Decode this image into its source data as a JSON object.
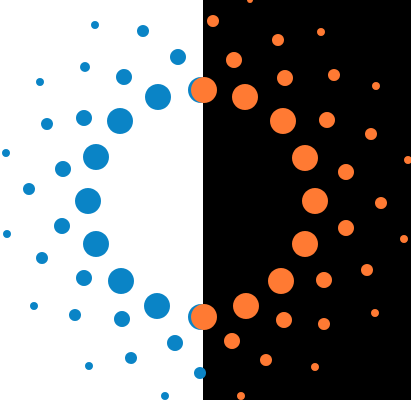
{
  "graphic": {
    "name": "split-dot-pattern",
    "left_background": "#ffffff",
    "right_background": "#000000",
    "left_dot_color": "#0a84c6",
    "right_dot_color": "#ff7a33"
  }
}
